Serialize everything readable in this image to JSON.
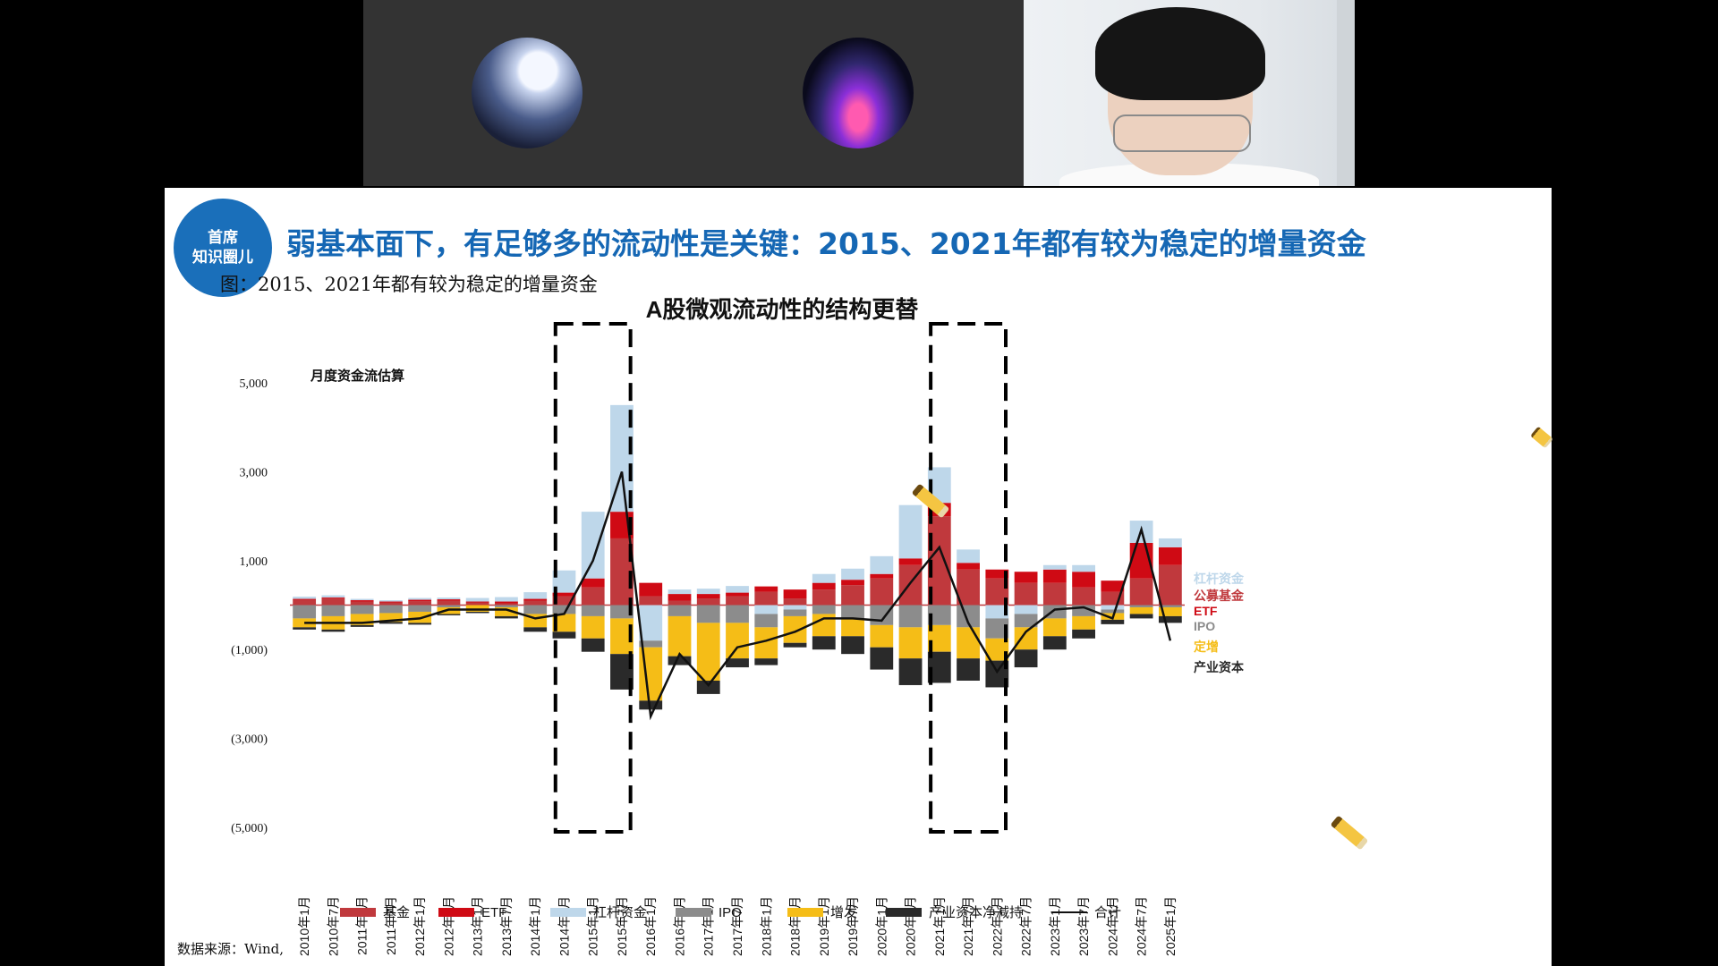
{
  "video": {
    "participants": [
      {
        "id": "p1",
        "avatar": "user-avatar-icon"
      },
      {
        "id": "p2",
        "avatar": "user-avatar-icon"
      },
      {
        "id": "p3",
        "type": "webcam-feed"
      }
    ]
  },
  "slide": {
    "badge_line1": "首席",
    "badge_line2": "知识圈儿",
    "title": "弱基本面下，有足够多的流动性是关键：2015、2021年都有较为稳定的增量资金",
    "caption": "图：2015、2021年都有较为稳定的增量资金",
    "source": "数据来源：Wind,",
    "annotation_icon": "pencil-icon",
    "accent_color": "#1567b4"
  },
  "chart_data": {
    "type": "bar",
    "title": "A股微观流动性的结构更替",
    "subtitle": "月度资金流估算",
    "y_ticks": [
      "5,000",
      "3,000",
      "1,000",
      "(1,000)",
      "(3,000)",
      "(5,000)"
    ],
    "ylim": [
      -5000,
      5000
    ],
    "x_ticks": [
      "2010年1月",
      "2010年7月",
      "2011年1月",
      "2011年7月",
      "2012年1月",
      "2012年7月",
      "2013年1月",
      "2013年7月",
      "2014年1月",
      "2014年7月",
      "2015年1月",
      "2015年7月",
      "2016年1月",
      "2016年7月",
      "2017年1月",
      "2017年7月",
      "2018年1月",
      "2018年7月",
      "2019年1月",
      "2019年7月",
      "2020年1月",
      "2020年7月",
      "2021年1月",
      "2021年7月",
      "2022年1月",
      "2022年7月",
      "2023年1月",
      "2023年7月",
      "2024年1月",
      "2024年7月",
      "2025年1月"
    ],
    "series": [
      {
        "name": "基金",
        "color": "#c0393d",
        "values": [
          120,
          150,
          80,
          60,
          90,
          100,
          60,
          40,
          100,
          200,
          400,
          1500,
          200,
          100,
          150,
          200,
          300,
          150,
          350,
          450,
          600,
          900,
          2000,
          800,
          600,
          500,
          500,
          400,
          300,
          600,
          900
        ]
      },
      {
        "name": "ETF",
        "color": "#cf0a14",
        "values": [
          20,
          20,
          30,
          20,
          30,
          30,
          20,
          40,
          40,
          80,
          200,
          600,
          300,
          150,
          100,
          80,
          120,
          200,
          150,
          120,
          100,
          150,
          300,
          150,
          200,
          250,
          300,
          350,
          250,
          800,
          400
        ]
      },
      {
        "name": "杠杆资金",
        "color": "#bed7ea",
        "values": [
          50,
          50,
          30,
          30,
          40,
          40,
          80,
          100,
          150,
          500,
          1500,
          2400,
          -800,
          100,
          120,
          150,
          -200,
          -100,
          200,
          250,
          400,
          1200,
          800,
          300,
          -300,
          -200,
          100,
          150,
          -100,
          500,
          200
        ]
      },
      {
        "name": "IPO",
        "color": "#8c8c8c",
        "values": [
          -300,
          -250,
          -200,
          -180,
          -150,
          -50,
          0,
          -50,
          -200,
          -200,
          -250,
          -300,
          -150,
          -250,
          -400,
          -400,
          -300,
          -150,
          -200,
          -300,
          -450,
          -500,
          -450,
          -500,
          -450,
          -300,
          -300,
          -250,
          -80,
          -50,
          -50
        ]
      },
      {
        "name": "增发",
        "color": "#f5bd17",
        "values": [
          -200,
          -300,
          -250,
          -200,
          -250,
          -150,
          -150,
          -200,
          -300,
          -400,
          -500,
          -800,
          -1200,
          -900,
          -1300,
          -800,
          -700,
          -600,
          -500,
          -400,
          -500,
          -700,
          -600,
          -700,
          -500,
          -500,
          -400,
          -300,
          -150,
          -150,
          -200
        ]
      },
      {
        "name": "产业资本净减持",
        "color": "#2a2a2a",
        "values": [
          -50,
          -50,
          -40,
          -40,
          -40,
          -30,
          -30,
          -50,
          -100,
          -150,
          -300,
          -800,
          -200,
          -200,
          -300,
          -200,
          -150,
          -100,
          -300,
          -400,
          -500,
          -600,
          -700,
          -500,
          -600,
          -400,
          -300,
          -200,
          -100,
          -100,
          -150
        ]
      },
      {
        "name": "合计",
        "color": "#111111",
        "values": [
          -400,
          -400,
          -400,
          -350,
          -300,
          -100,
          -100,
          -100,
          -300,
          -200,
          1000,
          3000,
          -2500,
          -1100,
          -1800,
          -950,
          -800,
          -600,
          -300,
          -300,
          -350,
          500,
          1300,
          -400,
          -1500,
          -600,
          -100,
          -50,
          -300,
          1700,
          -800
        ]
      }
    ],
    "annotations": [
      {
        "text": "杠杆资金",
        "color": "#bed7ea"
      },
      {
        "text": "公募基金",
        "color": "#c0393d"
      },
      {
        "text": "ETF",
        "color": "#cf0a14"
      },
      {
        "text": "IPO",
        "color": "#8c8c8c"
      },
      {
        "text": "定增",
        "color": "#f5bd17"
      },
      {
        "text": "产业资本",
        "color": "#2a2a2a"
      }
    ],
    "highlight_periods": [
      [
        "2014年7月",
        "2015年7月"
      ],
      [
        "2021年1月",
        "2022年1月"
      ]
    ],
    "legend_position": "bottom"
  }
}
